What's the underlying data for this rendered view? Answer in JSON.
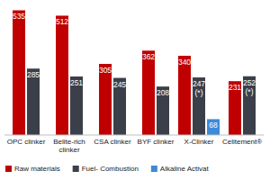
{
  "chart_data": {
    "type": "bar",
    "categories": [
      "OPC clinker",
      "Belite-rich clinker",
      "CSA clinker",
      "BYF clinker",
      "X-Clinker",
      "Celitement®"
    ],
    "series": [
      {
        "name": "Raw materials",
        "color": "#c00000",
        "values": [
          535,
          512,
          305,
          362,
          340,
          231
        ]
      },
      {
        "name": "Fuel- Combustion",
        "color": "#3b3f4a",
        "values": [
          285,
          251,
          245,
          208,
          247,
          252
        ],
        "value_labels": [
          "285",
          "251",
          "245",
          "208",
          "247 (*)",
          "252 (*)"
        ]
      },
      {
        "name": "Alkaline Activat",
        "color": "#3c8ad8",
        "values": [
          null,
          null,
          null,
          null,
          68,
          null
        ]
      }
    ],
    "ylim": [
      0,
      560
    ],
    "data_labels": true,
    "tick_labels": false,
    "legend": "bottom"
  }
}
